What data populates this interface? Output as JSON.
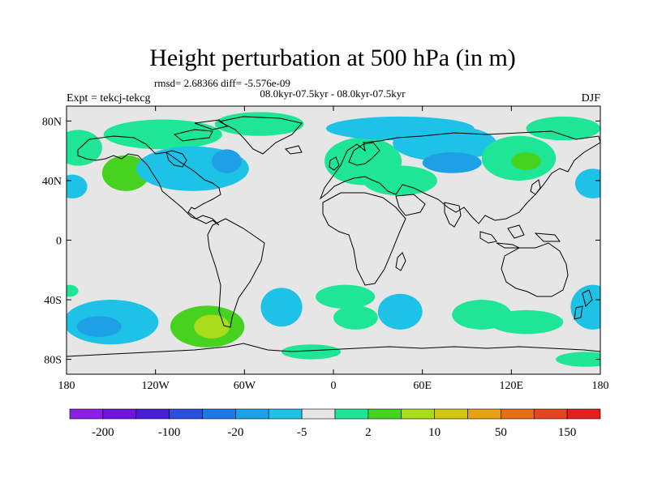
{
  "chart_data": {
    "type": "contour-map",
    "title": "Height perturbation at 500 hPa (in m)",
    "stats_text": "rmsd= 2.68366 diff= -5.576e-09",
    "period_text": "08.0kyr-07.5kyr - 08.0kyr-07.5kyr",
    "expt_text": "Expt = tekcj-tekcg",
    "season": "DJF",
    "lon_range": [
      -180,
      180
    ],
    "lat_range": [
      -90,
      90
    ],
    "lon_ticks": [
      {
        "value": -180,
        "label": "180"
      },
      {
        "value": -120,
        "label": "120W"
      },
      {
        "value": -60,
        "label": "60W"
      },
      {
        "value": 0,
        "label": "0"
      },
      {
        "value": 60,
        "label": "60E"
      },
      {
        "value": 120,
        "label": "120E"
      },
      {
        "value": 180,
        "label": "180"
      }
    ],
    "lat_ticks": [
      {
        "value": 80,
        "label": "80N"
      },
      {
        "value": 40,
        "label": "40N"
      },
      {
        "value": 0,
        "label": "0"
      },
      {
        "value": -40,
        "label": "40S"
      },
      {
        "value": -80,
        "label": "80S"
      }
    ],
    "colorbar": {
      "colors": [
        "#8c1ee6",
        "#6e14dc",
        "#4a1cd6",
        "#2850d8",
        "#1e78e6",
        "#1ea0e6",
        "#1ec2e6",
        "#e6e6e6",
        "#1ee696",
        "#46d21e",
        "#aadc1e",
        "#d2c814",
        "#e6a014",
        "#e66e14",
        "#e6461e",
        "#e61e1e"
      ],
      "tick_labels": [
        "-200",
        "-100",
        "-20",
        "-5",
        "2",
        "10",
        "50",
        "150"
      ],
      "tick_boundaries": [
        1,
        3,
        5,
        7,
        9,
        11,
        13,
        15
      ]
    },
    "fields": [
      {
        "lon": -172,
        "lat": 62,
        "rlon": 16,
        "rlat": 12,
        "value": 3
      },
      {
        "lon": -140,
        "lat": 45,
        "rlon": 16,
        "rlat": 12,
        "value": 5
      },
      {
        "lon": -176,
        "lat": 36,
        "rlon": 10,
        "rlat": 8,
        "value": -3
      },
      {
        "lon": -115,
        "lat": 71,
        "rlon": 40,
        "rlat": 10,
        "value": 4
      },
      {
        "lon": -95,
        "lat": 48,
        "rlon": 38,
        "rlat": 15,
        "value": -4
      },
      {
        "lon": -72,
        "lat": 53,
        "rlon": 10,
        "rlat": 8,
        "value": -8
      },
      {
        "lon": -50,
        "lat": 78,
        "rlon": 30,
        "rlat": 8,
        "value": 3
      },
      {
        "lon": 20,
        "lat": 53,
        "rlon": 26,
        "rlat": 16,
        "value": 4
      },
      {
        "lon": 45,
        "lat": 40,
        "rlon": 25,
        "rlat": 10,
        "value": 3
      },
      {
        "lon": 45,
        "lat": 75,
        "rlon": 50,
        "rlat": 8,
        "value": -3
      },
      {
        "lon": 75,
        "lat": 65,
        "rlon": 35,
        "rlat": 12,
        "value": -3
      },
      {
        "lon": 80,
        "lat": 52,
        "rlon": 20,
        "rlat": 7,
        "value": -6
      },
      {
        "lon": 125,
        "lat": 55,
        "rlon": 25,
        "rlat": 15,
        "value": 4
      },
      {
        "lon": 130,
        "lat": 53,
        "rlon": 10,
        "rlat": 6,
        "value": 7
      },
      {
        "lon": 175,
        "lat": 38,
        "rlon": 12,
        "rlat": 10,
        "value": -3
      },
      {
        "lon": 155,
        "lat": 75,
        "rlon": 25,
        "rlat": 8,
        "value": 3
      },
      {
        "lon": -150,
        "lat": -55,
        "rlon": 32,
        "rlat": 15,
        "value": -3
      },
      {
        "lon": -158,
        "lat": -58,
        "rlon": 15,
        "rlat": 7,
        "value": -7
      },
      {
        "lon": -178,
        "lat": -34,
        "rlon": 6,
        "rlat": 4,
        "value": 3
      },
      {
        "lon": -85,
        "lat": -58,
        "rlon": 25,
        "rlat": 14,
        "value": 5
      },
      {
        "lon": -82,
        "lat": -58,
        "rlon": 12,
        "rlat": 8,
        "value": 10
      },
      {
        "lon": -35,
        "lat": -45,
        "rlon": 14,
        "rlat": 13,
        "value": -3
      },
      {
        "lon": 8,
        "lat": -38,
        "rlon": 20,
        "rlat": 8,
        "value": 3
      },
      {
        "lon": 15,
        "lat": -52,
        "rlon": 15,
        "rlat": 8,
        "value": 3
      },
      {
        "lon": 45,
        "lat": -48,
        "rlon": 15,
        "rlat": 12,
        "value": -3
      },
      {
        "lon": 100,
        "lat": -50,
        "rlon": 20,
        "rlat": 10,
        "value": 3
      },
      {
        "lon": 130,
        "lat": -55,
        "rlon": 25,
        "rlat": 8,
        "value": 3
      },
      {
        "lon": 175,
        "lat": -45,
        "rlon": 15,
        "rlat": 15,
        "value": -3
      },
      {
        "lon": -15,
        "lat": -75,
        "rlon": 20,
        "rlat": 5,
        "value": 3
      },
      {
        "lon": 170,
        "lat": -80,
        "rlon": 20,
        "rlat": 5,
        "value": 3
      }
    ]
  }
}
